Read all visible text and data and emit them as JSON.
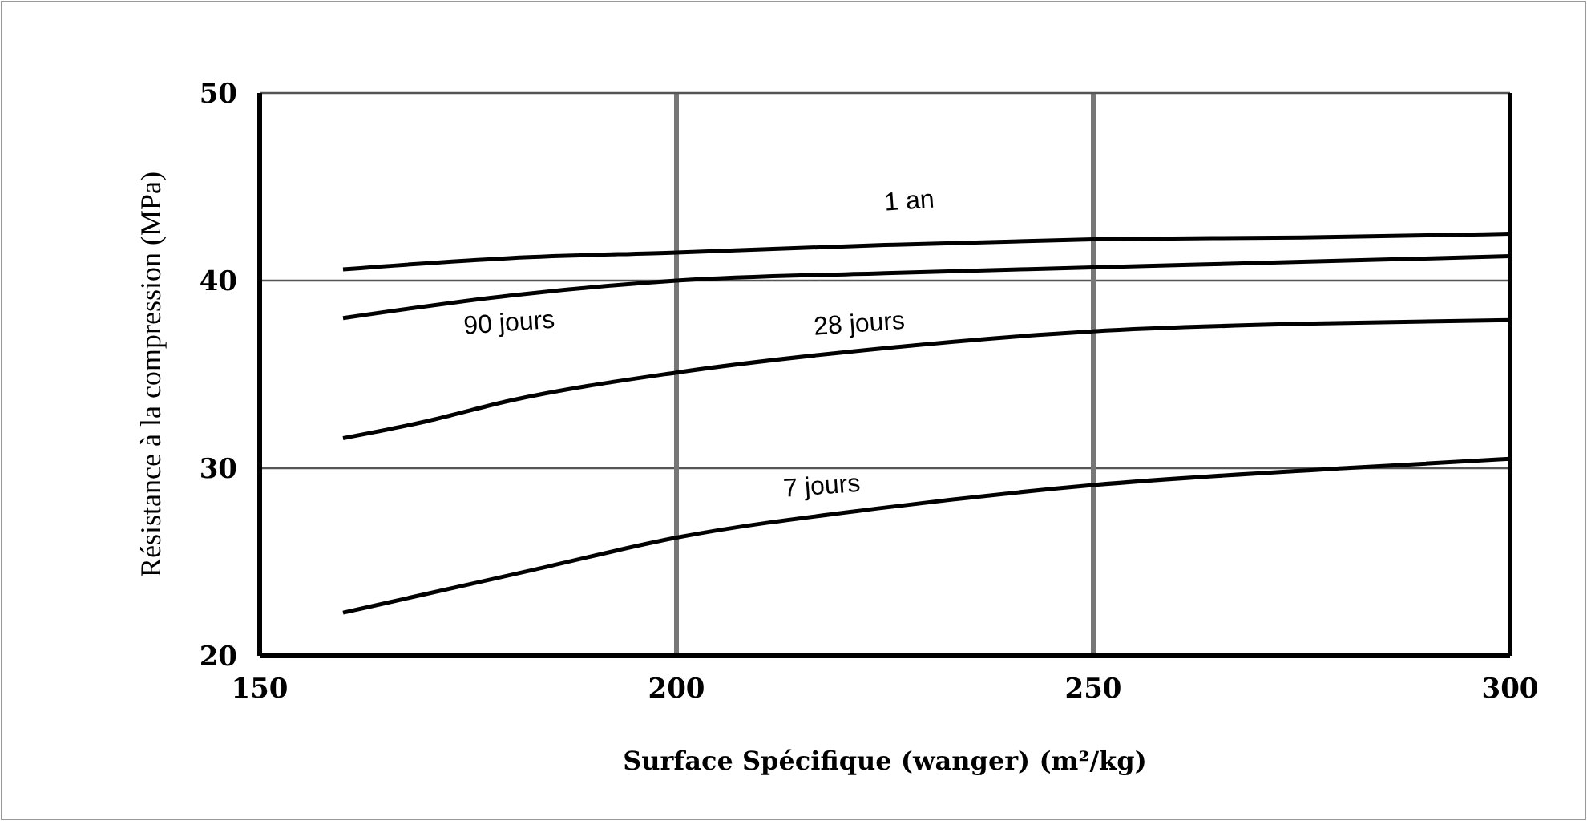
{
  "chart_data": {
    "type": "line",
    "xlabel": "Surface Spécifique (wanger) (m²/kg)",
    "ylabel": "Résistance à la compression (MPa)",
    "xlim": [
      150,
      300
    ],
    "ylim": [
      20,
      50
    ],
    "xticks": [
      150,
      200,
      250,
      300
    ],
    "yticks": [
      20,
      30,
      40,
      50
    ],
    "grid": true,
    "marker": "none",
    "line_style": "solid",
    "series": [
      {
        "name": "1 an",
        "color": "#000000",
        "x": [
          160,
          180,
          200,
          225,
          250,
          275,
          300
        ],
        "values": [
          40.6,
          41.2,
          41.5,
          41.9,
          42.2,
          42.3,
          42.5
        ]
      },
      {
        "name": "90 jours",
        "color": "#000000",
        "x": [
          160,
          180,
          200,
          225,
          250,
          275,
          300
        ],
        "values": [
          38,
          39.2,
          40,
          40.4,
          40.7,
          41,
          41.3
        ]
      },
      {
        "name": "28 jours",
        "color": "#000000",
        "x": [
          160,
          170,
          180,
          200,
          225,
          250,
          275,
          300
        ],
        "values": [
          31.6,
          32.5,
          33.6,
          35.1,
          36.4,
          37.3,
          37.7,
          37.9
        ]
      },
      {
        "name": "7 jours",
        "color": "#000000",
        "x": [
          160,
          170,
          183,
          200,
          225,
          250,
          280,
          300
        ],
        "values": [
          22.3,
          23.3,
          24.6,
          26.3,
          27.9,
          29.1,
          30,
          30.5
        ]
      }
    ]
  }
}
